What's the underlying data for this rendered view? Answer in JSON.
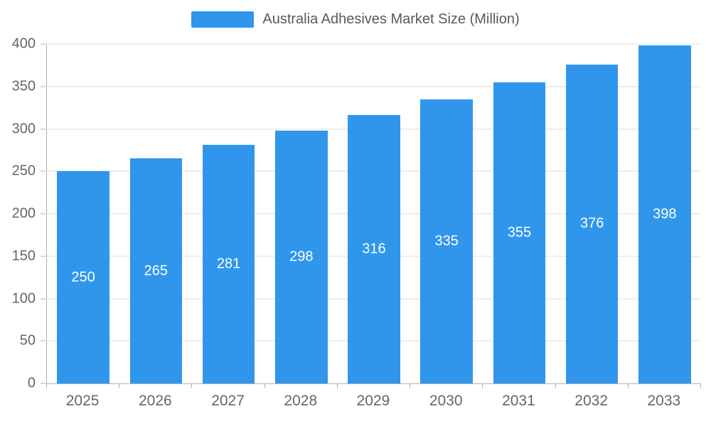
{
  "chart_data": {
    "type": "bar",
    "title": "Australia Adhesives Market Size (Million)",
    "categories": [
      "2025",
      "2026",
      "2027",
      "2028",
      "2029",
      "2030",
      "2031",
      "2032",
      "2033"
    ],
    "values": [
      250,
      265,
      281,
      298,
      316,
      335,
      355,
      376,
      398
    ],
    "ylim": [
      0,
      400
    ],
    "yticks": [
      0,
      50,
      100,
      150,
      200,
      250,
      300,
      350,
      400
    ],
    "grid": true,
    "legend_position": "top",
    "value_labels": "inside-center",
    "bar_color": "#2F96EC",
    "value_label_color": "#ffffff",
    "grid_color": "#dddddd",
    "axis_color": "#b0b0b0",
    "tick_label_color": "#666666",
    "legend_text_color": "#595959"
  }
}
